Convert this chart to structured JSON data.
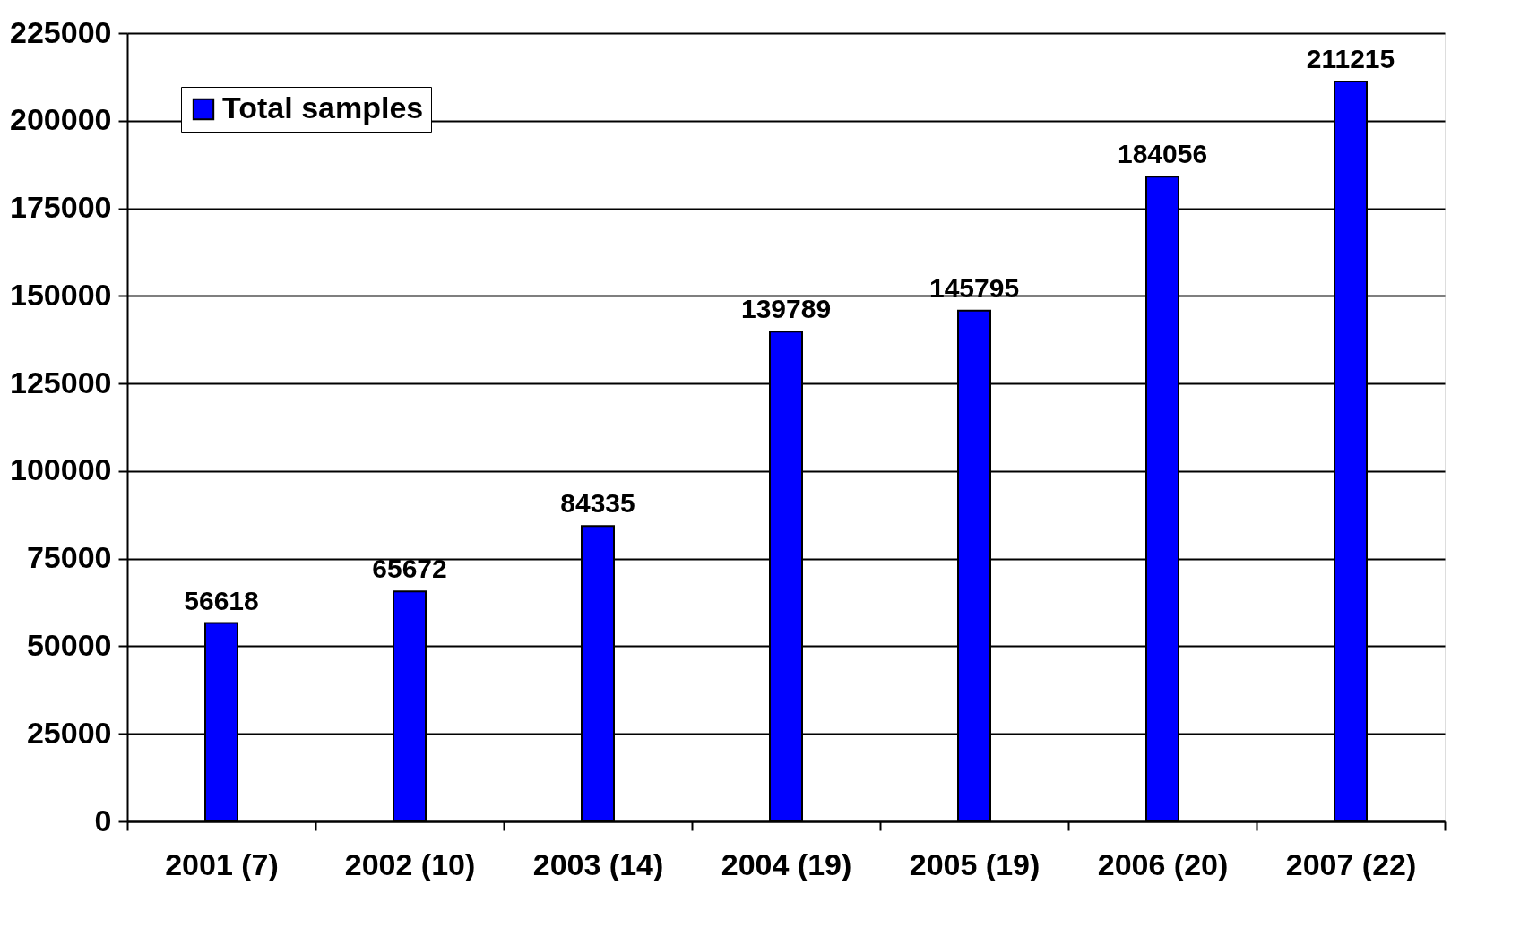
{
  "chart_data": {
    "type": "bar",
    "categories": [
      "2001 (7)",
      "2002 (10)",
      "2003 (14)",
      "2004 (19)",
      "2005 (19)",
      "2006 (20)",
      "2007 (22)"
    ],
    "series": [
      {
        "name": "Total samples",
        "color": "#0000ff",
        "values": [
          56618,
          65672,
          84335,
          139789,
          145795,
          184056,
          211215
        ]
      }
    ],
    "ylim": [
      0,
      225000
    ],
    "yticks": [
      0,
      25000,
      50000,
      75000,
      100000,
      125000,
      150000,
      175000,
      200000,
      225000
    ],
    "grid": "y",
    "legend": "top left",
    "data_labels": true
  }
}
